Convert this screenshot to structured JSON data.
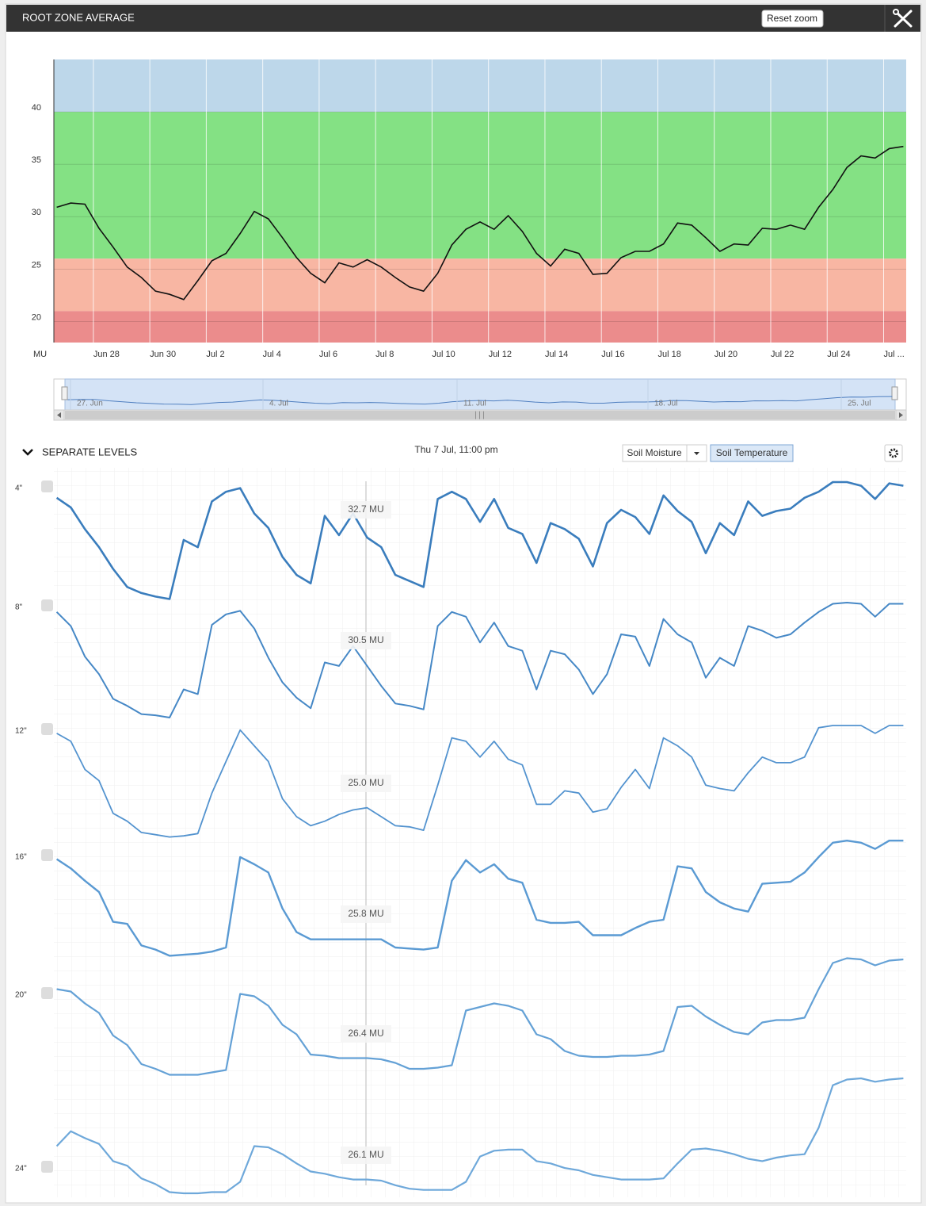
{
  "header": {
    "title": "ROOT ZONE AVERAGE",
    "reset_zoom": "Reset zoom"
  },
  "chart_data": {
    "type": "line",
    "ylabel": "MU",
    "ylim": [
      18,
      45
    ],
    "yticks": [
      20,
      25,
      30,
      35,
      40
    ],
    "xlim": [
      -0.2,
      60.2
    ],
    "xticks": [
      {
        "value": 2.6,
        "label": "Jun 28"
      },
      {
        "value": 6.6,
        "label": "Jun 30"
      },
      {
        "value": 10.6,
        "label": "Jul 2"
      },
      {
        "value": 14.6,
        "label": "Jul 4"
      },
      {
        "value": 18.6,
        "label": "Jul 6"
      },
      {
        "value": 22.6,
        "label": "Jul 8"
      },
      {
        "value": 26.6,
        "label": "Jul 10"
      },
      {
        "value": 30.6,
        "label": "Jul 12"
      },
      {
        "value": 34.6,
        "label": "Jul 14"
      },
      {
        "value": 38.6,
        "label": "Jul 16"
      },
      {
        "value": 42.6,
        "label": "Jul 18"
      },
      {
        "value": 46.6,
        "label": "Jul 20"
      },
      {
        "value": 50.6,
        "label": "Jul 22"
      },
      {
        "value": 54.6,
        "label": "Jul 24"
      },
      {
        "value": 58.6,
        "label": "Jul ..."
      }
    ],
    "grid": true,
    "bands": [
      {
        "from": 40,
        "to": 45,
        "color": "#bdd7ea"
      },
      {
        "from": 26,
        "to": 40,
        "color": "#84e184"
      },
      {
        "from": 21,
        "to": 26,
        "color": "#f8b6a3"
      },
      {
        "from": 18,
        "to": 21,
        "color": "#eb8c8c"
      }
    ],
    "series": [
      {
        "color": "#111111",
        "values": [
          30.9,
          31.3,
          31.2,
          28.9,
          27.1,
          25.2,
          24.2,
          22.9,
          22.6,
          22.1,
          23.9,
          25.8,
          26.5,
          28.4,
          30.5,
          29.8,
          28.0,
          26.1,
          24.6,
          23.7,
          25.6,
          25.2,
          25.9,
          25.2,
          24.2,
          23.3,
          22.9,
          24.6,
          27.3,
          28.8,
          29.5,
          28.8,
          30.1,
          28.6,
          26.5,
          25.3,
          26.9,
          26.5,
          24.5,
          24.6,
          26.1,
          26.7,
          26.7,
          27.4,
          29.4,
          29.2,
          28.0,
          26.7,
          27.4,
          27.3,
          28.9,
          28.8,
          29.2,
          28.8,
          30.9,
          32.6,
          34.7,
          35.8,
          35.6,
          36.5,
          36.7
        ]
      }
    ]
  },
  "navigator": {
    "labels": [
      "27. Jun",
      "4. Jul",
      "11. Jul",
      "18. Jul",
      "25. Jul"
    ]
  },
  "levels": {
    "title": "SEPARATE LEVELS",
    "date": "Thu 7 Jul, 11:00 pm",
    "buttons": [
      "Soil Moisture",
      "Soil Temperature"
    ],
    "series": [
      {
        "name": "4\"",
        "color": "#3a7dbd",
        "ylim": [
          0,
          100
        ],
        "tooltip": "32.7 MU",
        "values": [
          85,
          77,
          59,
          44,
          26,
          11,
          6,
          3,
          1,
          50,
          44,
          82,
          90,
          93,
          72,
          60,
          36,
          21,
          14,
          70,
          54,
          72,
          52,
          44,
          21,
          16,
          11,
          84,
          90,
          84,
          65,
          84,
          60,
          55,
          31,
          64,
          59,
          51,
          28,
          64,
          75,
          69,
          55,
          87,
          74,
          65,
          39,
          64,
          54,
          82,
          70,
          74,
          76,
          85,
          90,
          98,
          98,
          95,
          84,
          97,
          95
        ]
      },
      {
        "name": "8\"",
        "color": "#4688c6",
        "ylim": [
          0,
          100
        ],
        "tooltip": "30.5 MU",
        "values": [
          92,
          80,
          54,
          39,
          18,
          12,
          5,
          4,
          2,
          26,
          22,
          81,
          90,
          93,
          78,
          53,
          32,
          19,
          10,
          49,
          46,
          63,
          46,
          29,
          14,
          12,
          9,
          80,
          92,
          88,
          66,
          83,
          63,
          59,
          26,
          59,
          56,
          43,
          22,
          39,
          73,
          71,
          46,
          86,
          73,
          66,
          36,
          53,
          46,
          80,
          76,
          70,
          73,
          83,
          92,
          99,
          100,
          99,
          88,
          99,
          99
        ]
      },
      {
        "name": "12\"",
        "color": "#5393cf",
        "ylim": [
          0,
          100
        ],
        "tooltip": "25.0 MU",
        "values": [
          93,
          86,
          61,
          51,
          22,
          15,
          5,
          3,
          1,
          2,
          4,
          40,
          68,
          96,
          82,
          68,
          35,
          19,
          11,
          15,
          21,
          25,
          27,
          19,
          11,
          10,
          7,
          47,
          89,
          86,
          72,
          86,
          70,
          65,
          30,
          30,
          42,
          40,
          23,
          26,
          45,
          61,
          44,
          89,
          82,
          72,
          47,
          44,
          42,
          58,
          72,
          67,
          67,
          72,
          98,
          100,
          100,
          100,
          93,
          100,
          100
        ]
      },
      {
        "name": "16\"",
        "color": "#5a9ad3",
        "ylim": [
          0,
          118
        ],
        "tooltip": "25.8 MU",
        "values": [
          96,
          87,
          75,
          64,
          35,
          33,
          12,
          8,
          2,
          3,
          4,
          6,
          10,
          98,
          91,
          83,
          48,
          25,
          18,
          18,
          18,
          18,
          18,
          18,
          10,
          9,
          8,
          10,
          75,
          95,
          83,
          91,
          77,
          73,
          37,
          34,
          34,
          35,
          22,
          22,
          22,
          29,
          35,
          37,
          89,
          87,
          64,
          54,
          48,
          45,
          72,
          73,
          74,
          83,
          98,
          112,
          114,
          112,
          106,
          114,
          114
        ]
      },
      {
        "name": "20\"",
        "color": "#64a1d6",
        "ylim": [
          0,
          100
        ],
        "tooltip": "26.4 MU",
        "values": [
          73,
          71,
          61,
          53,
          34,
          26,
          10,
          6,
          1,
          1,
          1,
          3,
          5,
          69,
          67,
          59,
          43,
          35,
          18,
          17,
          15,
          15,
          15,
          14,
          11,
          6,
          6,
          7,
          9,
          55,
          58,
          61,
          59,
          55,
          35,
          31,
          21,
          17,
          16,
          16,
          17,
          17,
          18,
          21,
          58,
          59,
          50,
          43,
          37,
          35,
          45,
          47,
          47,
          49,
          73,
          95,
          99,
          98,
          93,
          97,
          98
        ]
      },
      {
        "name": "24\"",
        "color": "#6ea8da",
        "ylim": [
          0,
          100
        ],
        "tooltip": "26.1 MU",
        "values": [
          41,
          54,
          48,
          43,
          28,
          24,
          13,
          8,
          1,
          0,
          0,
          1,
          1,
          10,
          41,
          40,
          34,
          26,
          19,
          17,
          14,
          12,
          12,
          11,
          7,
          4,
          3,
          3,
          3,
          10,
          32,
          37,
          38,
          38,
          28,
          26,
          22,
          20,
          16,
          14,
          12,
          12,
          12,
          13,
          26,
          38,
          39,
          37,
          34,
          30,
          28,
          31,
          33,
          34,
          57,
          94,
          99,
          100,
          97,
          99,
          100
        ]
      }
    ]
  }
}
